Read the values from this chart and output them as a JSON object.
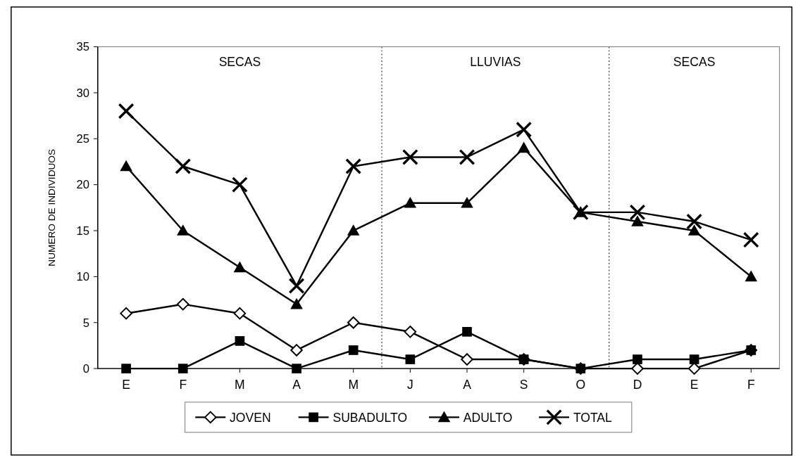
{
  "chart_data": {
    "type": "line",
    "ylabel": "NUMERO DE INDIVIDUOS",
    "categories": [
      "E",
      "F",
      "M",
      "A",
      "M",
      "J",
      "A",
      "S",
      "O",
      "D",
      "E",
      "F"
    ],
    "ylim": [
      0,
      35
    ],
    "yticks": [
      0,
      5,
      10,
      15,
      20,
      25,
      30,
      35
    ],
    "series": [
      {
        "name": "JOVEN",
        "color": "#000000",
        "marker": "diamond",
        "values": [
          6,
          7,
          6,
          2,
          5,
          4,
          1,
          1,
          0,
          0,
          0,
          2
        ]
      },
      {
        "name": "SUBADULTO",
        "color": "#000000",
        "marker": "square",
        "values": [
          0,
          0,
          3,
          0,
          2,
          1,
          4,
          1,
          0,
          1,
          1,
          2
        ]
      },
      {
        "name": "ADULTO",
        "color": "#000000",
        "marker": "triangle",
        "values": [
          22,
          15,
          11,
          7,
          15,
          18,
          18,
          24,
          17,
          16,
          15,
          10
        ]
      },
      {
        "name": "TOTAL",
        "color": "#000000",
        "marker": "cross",
        "values": [
          28,
          22,
          20,
          9,
          22,
          23,
          23,
          26,
          17,
          17,
          16,
          14
        ]
      }
    ],
    "annotations": [
      "SECAS",
      "LLUVIAS",
      "SECAS"
    ],
    "grid": false,
    "legend": "bottom",
    "line_style": "solid"
  }
}
